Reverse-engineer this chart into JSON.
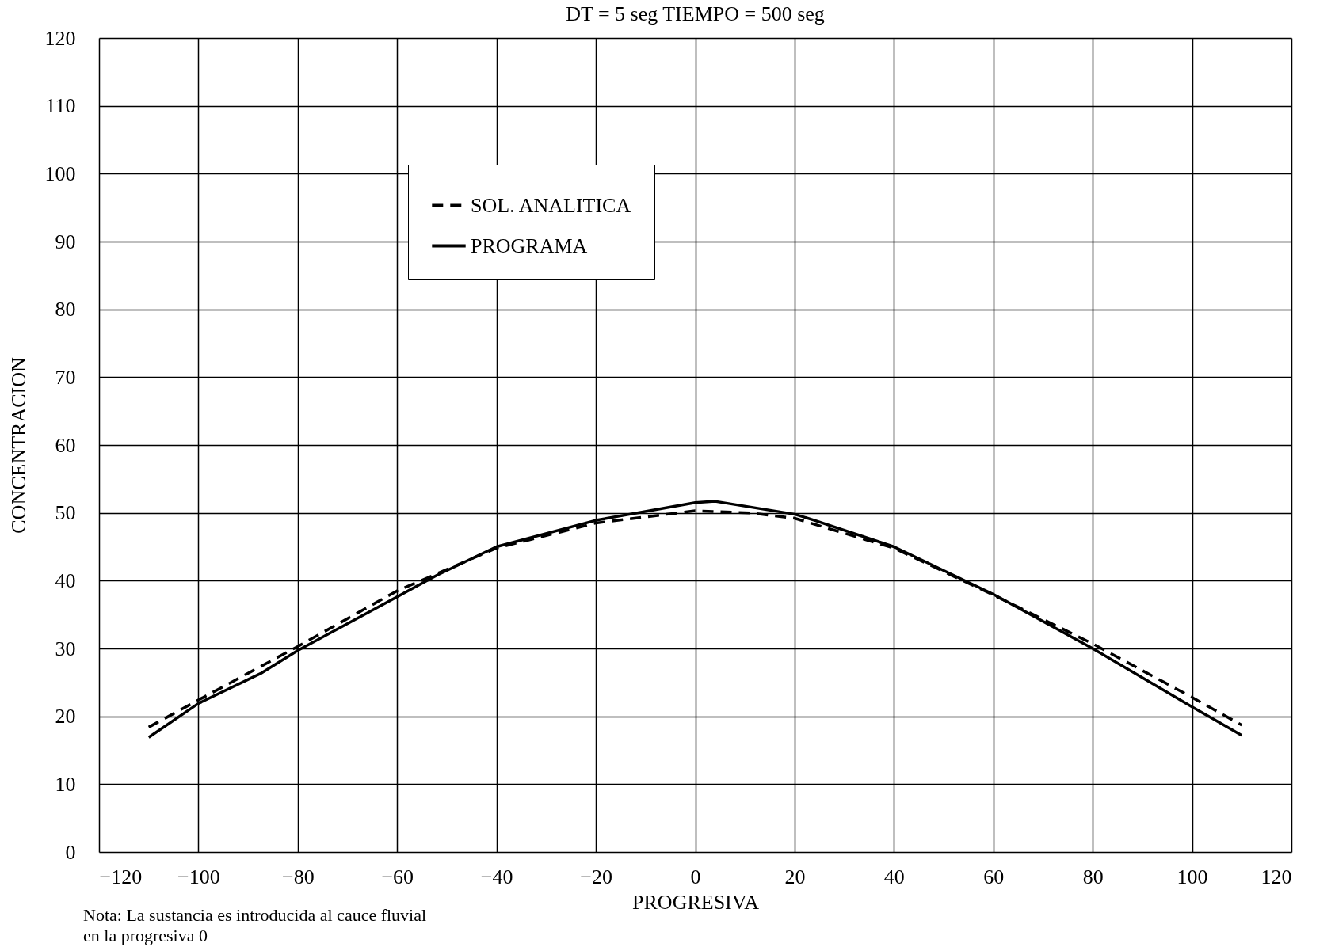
{
  "chart_data": {
    "type": "line",
    "title": "DT = 5 seg      TIEMPO = 500 seg",
    "xlabel": "PROGRESIVA",
    "ylabel": "CONCENTRACION",
    "xlim": [
      -120,
      120
    ],
    "xticks": [
      -120,
      -100,
      -80,
      -60,
      -40,
      -20,
      0,
      20,
      40,
      60,
      80,
      100,
      120
    ],
    "ylim": [
      0,
      120
    ],
    "yticks": [
      0,
      10,
      20,
      30,
      40,
      50,
      60,
      70,
      80,
      90,
      100,
      110,
      120
    ],
    "grid": true,
    "legend": "top left",
    "marker": "none",
    "annotations": [
      "Nota: La sustancia es introducida al cauce fluvial\n        en la progresiva 0"
    ],
    "series": [
      {
        "name": "SOL. ANALITICA",
        "color": "#000000",
        "line_style": "dashed",
        "x": [
          -110,
          -100,
          -80,
          -60,
          -40,
          -20,
          0,
          11,
          20,
          40,
          60,
          80,
          100,
          110
        ],
        "values": [
          18.4,
          22.4,
          30.3,
          38.5,
          44.8,
          48.5,
          50.3,
          50,
          49.2,
          44.8,
          37.9,
          30.7,
          22.8,
          18.7
        ]
      },
      {
        "name": "PROGRAMA",
        "color": "#000000",
        "line_style": "solid",
        "x": [
          -110,
          -100,
          -87.5,
          -80,
          -65.6,
          -52,
          -40,
          -20,
          0,
          4,
          20,
          24,
          40,
          60,
          80,
          100,
          110
        ],
        "values": [
          16.9,
          21.9,
          26.3,
          29.7,
          35.4,
          40.8,
          45,
          48.9,
          51.5,
          51.7,
          49.8,
          48.9,
          45,
          38,
          30,
          21.4,
          17.2
        ]
      }
    ]
  }
}
